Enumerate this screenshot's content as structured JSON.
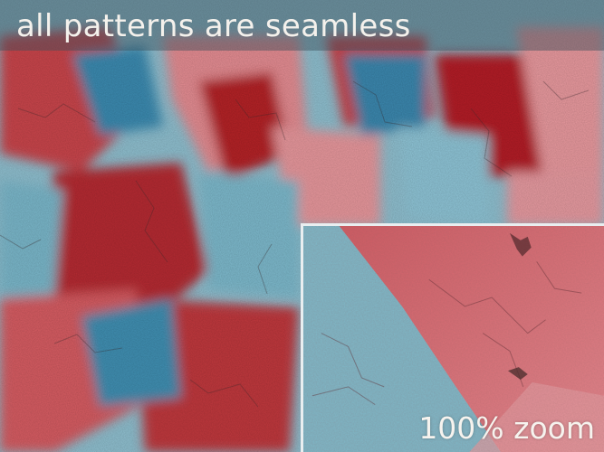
{
  "title": "all patterns are seamless",
  "inset_label": "100% zoom",
  "palette": {
    "red_dark": "#a81c22",
    "red": "#d2555c",
    "pink": "#e8959a",
    "blue": "#6fb2c8",
    "blue_dark": "#2f86a8",
    "blue_light": "#9fcad8"
  }
}
